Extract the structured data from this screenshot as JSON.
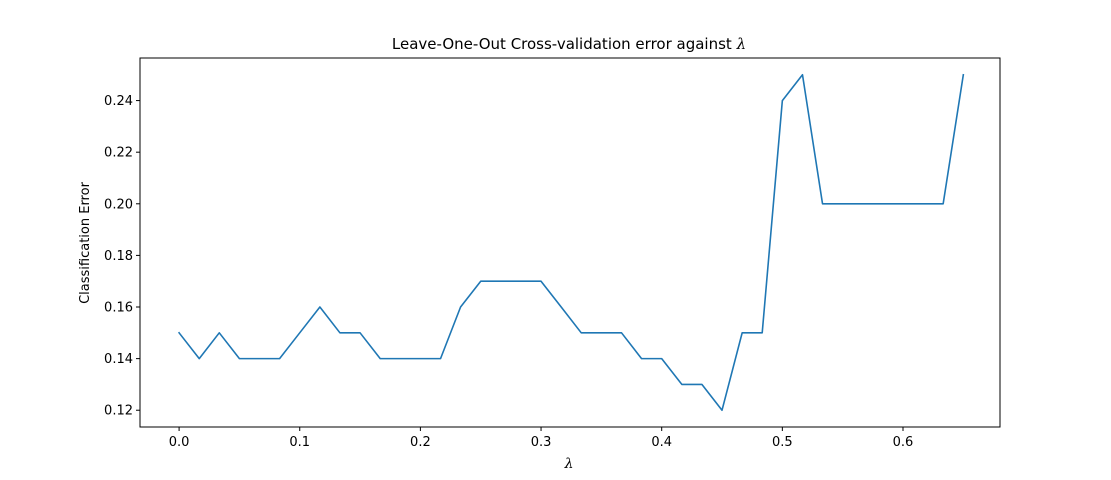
{
  "chart_data": {
    "type": "line",
    "title_text": "Leave-One-Out Cross-validation error against ",
    "title_symbol": "λ",
    "xlabel": "λ",
    "ylabel": "Classification Error",
    "xlim": [
      -0.0324,
      0.6804
    ],
    "ylim": [
      0.1135,
      0.2565
    ],
    "xticks": [
      0.0,
      0.1,
      0.2,
      0.3,
      0.4,
      0.5,
      0.6
    ],
    "xtick_labels": [
      "0.0",
      "0.1",
      "0.2",
      "0.3",
      "0.4",
      "0.5",
      "0.6"
    ],
    "yticks": [
      0.12,
      0.14,
      0.16,
      0.18,
      0.2,
      0.22,
      0.24
    ],
    "ytick_labels": [
      "0.12",
      "0.14",
      "0.16",
      "0.18",
      "0.20",
      "0.22",
      "0.24"
    ],
    "grid": false,
    "series": [
      {
        "color": "#1f77b4",
        "x": [
          0.0,
          0.0167,
          0.0333,
          0.05,
          0.0667,
          0.0833,
          0.1,
          0.1167,
          0.1333,
          0.15,
          0.1667,
          0.1833,
          0.2,
          0.2167,
          0.2333,
          0.25,
          0.2667,
          0.2833,
          0.3,
          0.3167,
          0.3333,
          0.35,
          0.3667,
          0.3833,
          0.4,
          0.4167,
          0.4333,
          0.45,
          0.4667,
          0.4833,
          0.5,
          0.5167,
          0.5333,
          0.55,
          0.5667,
          0.5833,
          0.6,
          0.6167,
          0.6333,
          0.65
        ],
        "y": [
          0.15,
          0.14,
          0.15,
          0.14,
          0.14,
          0.14,
          0.15,
          0.16,
          0.15,
          0.15,
          0.14,
          0.14,
          0.14,
          0.14,
          0.16,
          0.17,
          0.17,
          0.17,
          0.17,
          0.16,
          0.15,
          0.15,
          0.15,
          0.14,
          0.14,
          0.13,
          0.13,
          0.12,
          0.15,
          0.15,
          0.24,
          0.25,
          0.2,
          0.2,
          0.2,
          0.2,
          0.2,
          0.2,
          0.2,
          0.25
        ]
      }
    ]
  }
}
